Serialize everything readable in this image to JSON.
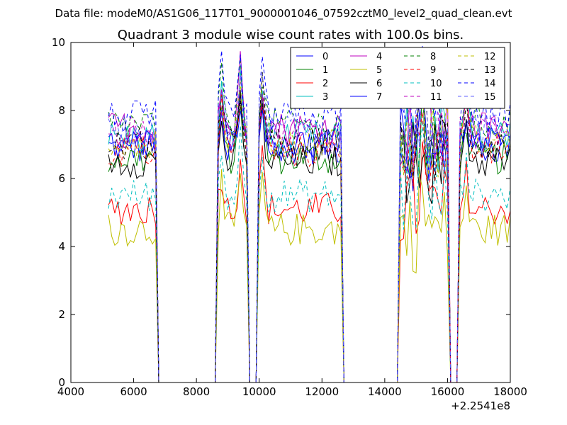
{
  "header": {
    "file_label": "Data file: modeM0/AS1G06_117T01_9000001046_07592cztM0_level2_quad_clean.evt"
  },
  "chart_data": {
    "type": "line",
    "title": "Quadrant 3 module wise count rates with 100.0s bins.",
    "xlabel": "",
    "ylabel": "",
    "x_offset_label": "+2.2541e8",
    "xlim": [
      4000,
      18000
    ],
    "ylim": [
      0,
      10
    ],
    "xticks": [
      4000,
      6000,
      8000,
      10000,
      12000,
      14000,
      16000,
      18000
    ],
    "yticks": [
      0,
      2,
      4,
      6,
      8,
      10
    ],
    "grid": false,
    "legend_position": "top-right",
    "bins_seconds": 100,
    "gti_segments": [
      [
        5200,
        6700
      ],
      [
        8700,
        9600
      ],
      [
        10000,
        12600
      ],
      [
        14500,
        16000
      ],
      [
        16400,
        18000
      ]
    ],
    "dropouts": [
      [
        6800,
        8600
      ],
      [
        9700,
        9900
      ],
      [
        12700,
        14400
      ],
      [
        16100,
        16300
      ]
    ],
    "series": [
      {
        "name": "0",
        "color": "#0000ff",
        "style": "solid",
        "level": 6.9
      },
      {
        "name": "1",
        "color": "#008000",
        "style": "solid",
        "level": 6.6
      },
      {
        "name": "2",
        "color": "#ff0000",
        "style": "solid",
        "level": 5.1
      },
      {
        "name": "3",
        "color": "#00bfbf",
        "style": "solid",
        "level": 7.2
      },
      {
        "name": "4",
        "color": "#bf00bf",
        "style": "solid",
        "level": 7.5
      },
      {
        "name": "5",
        "color": "#bfbf00",
        "style": "solid",
        "level": 4.5
      },
      {
        "name": "6",
        "color": "#000000",
        "style": "solid",
        "level": 6.5
      },
      {
        "name": "7",
        "color": "#0000ff",
        "style": "solid",
        "level": 7.0
      },
      {
        "name": "8",
        "color": "#008000",
        "style": "dashed",
        "level": 7.6
      },
      {
        "name": "9",
        "color": "#ff0000",
        "style": "dashed",
        "level": 6.8
      },
      {
        "name": "10",
        "color": "#00bfbf",
        "style": "dashed",
        "level": 5.5
      },
      {
        "name": "11",
        "color": "#bf00bf",
        "style": "dashed",
        "level": 7.3
      },
      {
        "name": "12",
        "color": "#bfbf00",
        "style": "dashed",
        "level": 7.1
      },
      {
        "name": "13",
        "color": "#000000",
        "style": "dashed",
        "level": 7.0
      },
      {
        "name": "14",
        "color": "#0000ff",
        "style": "dashed",
        "level": 7.8
      },
      {
        "name": "15",
        "color": "#6060ff",
        "style": "dashed",
        "level": 7.4
      }
    ],
    "flare_peaks": [
      {
        "x": 8800,
        "y": 9.2
      },
      {
        "x": 9400,
        "y": 9.8
      },
      {
        "x": 10100,
        "y": 9.5
      },
      {
        "x": 15200,
        "y": 9.4
      },
      {
        "x": 16600,
        "y": 9.1
      }
    ]
  }
}
